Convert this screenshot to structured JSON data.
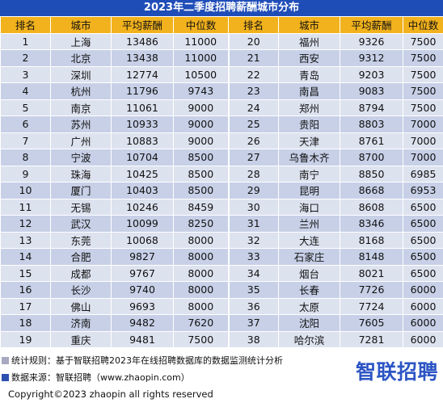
{
  "title": "2023年二季度招聘薪酬城市分布",
  "headers": [
    "排名",
    "城市",
    "平均薪酬",
    "中位数",
    "排名",
    "城市",
    "平均薪酬",
    "中位数"
  ],
  "rows": [
    [
      [
        "1",
        "上海",
        "13486",
        "11000"
      ],
      [
        "20",
        "福州",
        "9326",
        "7500"
      ]
    ],
    [
      [
        "2",
        "北京",
        "13438",
        "11000"
      ],
      [
        "21",
        "西安",
        "9312",
        "7500"
      ]
    ],
    [
      [
        "3",
        "深圳",
        "12774",
        "10500"
      ],
      [
        "22",
        "青岛",
        "9203",
        "7500"
      ]
    ],
    [
      [
        "4",
        "杭州",
        "11796",
        "9743"
      ],
      [
        "23",
        "南昌",
        "9083",
        "7500"
      ]
    ],
    [
      [
        "5",
        "南京",
        "11061",
        "9000"
      ],
      [
        "24",
        "郑州",
        "8794",
        "7500"
      ]
    ],
    [
      [
        "6",
        "苏州",
        "10933",
        "9000"
      ],
      [
        "25",
        "贵阳",
        "8803",
        "7000"
      ]
    ],
    [
      [
        "7",
        "广州",
        "10883",
        "9000"
      ],
      [
        "26",
        "天津",
        "8761",
        "7000"
      ]
    ],
    [
      [
        "8",
        "宁波",
        "10704",
        "8500"
      ],
      [
        "27",
        "乌鲁木齐",
        "8700",
        "7000"
      ]
    ],
    [
      [
        "9",
        "珠海",
        "10425",
        "8500"
      ],
      [
        "28",
        "南宁",
        "8850",
        "6985"
      ]
    ],
    [
      [
        "10",
        "厦门",
        "10403",
        "8500"
      ],
      [
        "29",
        "昆明",
        "8668",
        "6953"
      ]
    ],
    [
      [
        "11",
        "无锡",
        "10246",
        "8459"
      ],
      [
        "30",
        "海口",
        "8608",
        "6500"
      ]
    ],
    [
      [
        "12",
        "武汉",
        "10099",
        "8250"
      ],
      [
        "31",
        "兰州",
        "8346",
        "6500"
      ]
    ],
    [
      [
        "13",
        "东莞",
        "10068",
        "8000"
      ],
      [
        "32",
        "大连",
        "8168",
        "6500"
      ]
    ],
    [
      [
        "14",
        "合肥",
        "9827",
        "8000"
      ],
      [
        "33",
        "石家庄",
        "8148",
        "6500"
      ]
    ],
    [
      [
        "15",
        "成都",
        "9767",
        "8000"
      ],
      [
        "34",
        "烟台",
        "8021",
        "6500"
      ]
    ],
    [
      [
        "16",
        "长沙",
        "9740",
        "8000"
      ],
      [
        "35",
        "长春",
        "7726",
        "6000"
      ]
    ],
    [
      [
        "17",
        "佛山",
        "9693",
        "8000"
      ],
      [
        "36",
        "太原",
        "7724",
        "6000"
      ]
    ],
    [
      [
        "18",
        "济南",
        "9482",
        "7620"
      ],
      [
        "37",
        "沈阳",
        "7605",
        "6000"
      ]
    ],
    [
      [
        "19",
        "重庆",
        "9481",
        "7500"
      ],
      [
        "38",
        "哈尔滨",
        "7281",
        "6000"
      ]
    ]
  ],
  "footer": {
    "note1": "统计规则：基于智联招聘2023年在线招聘数据库的数据监测统计分析",
    "note2": "数据来源：智联招聘（www.zhaopin.com）",
    "copyright": "Copyright©2023 zhaopin all rights reserved",
    "logo_text": "智联招聘"
  },
  "colors": {
    "title_bg": "#1f4db8",
    "header_bg": "#f2b21d",
    "row_light": "#dde2ef",
    "row_dark": "#c7d0e7",
    "logo": "#2d55c4",
    "note1_marker": "#a8a8c0",
    "note2_marker": "#2d4fb0"
  }
}
